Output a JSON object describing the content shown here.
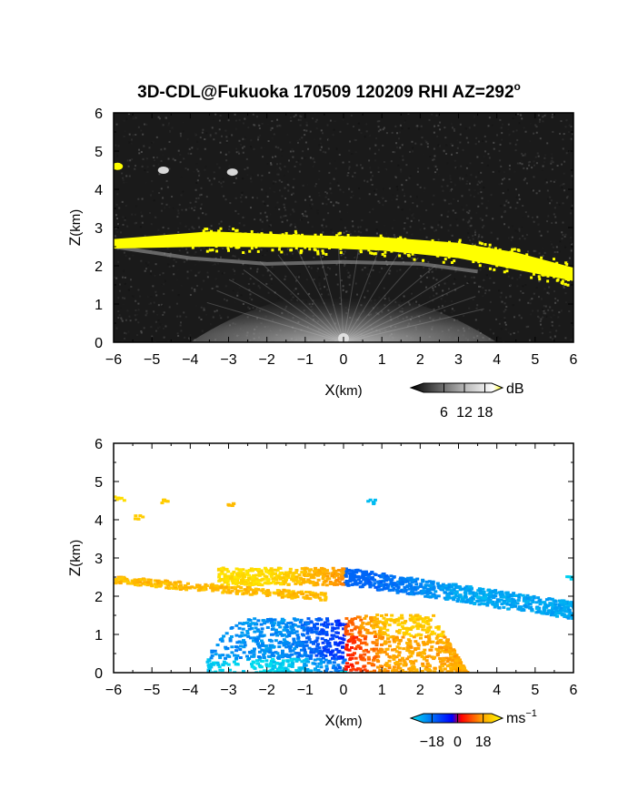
{
  "chart_data": [
    {
      "type": "heatmap",
      "panel": "top",
      "title_main": "3D-CDL@Fukuoka 170509 120209 RHI AZ=292",
      "title_sup": "o",
      "xlabel_main": "X",
      "xlabel_unit": "(km)",
      "ylabel_main": "Z",
      "ylabel_unit": "(km)",
      "xlim": [
        -6,
        6
      ],
      "ylim": [
        0,
        6
      ],
      "x_ticks": [
        -6,
        -5,
        -4,
        -3,
        -2,
        -1,
        0,
        1,
        2,
        3,
        4,
        5,
        6
      ],
      "y_ticks": [
        0,
        1,
        2,
        3,
        4,
        5,
        6
      ],
      "colorbar": {
        "unit": "dB",
        "unit_sup": "",
        "ticks": [
          "6",
          "12",
          "18"
        ],
        "range": [
          0,
          20
        ],
        "tick_values": [
          6,
          12,
          18
        ],
        "colors": [
          "#000000",
          "#ffffff",
          "#ffff00"
        ]
      },
      "features": [
        {
          "label": "cloud layer",
          "x": [
            -6.0,
            -3.5,
            -1.0,
            1.0,
            3.0,
            4.5,
            6.0
          ],
          "z_base": [
            2.45,
            2.5,
            2.48,
            2.4,
            2.2,
            1.9,
            1.6
          ],
          "z_top": [
            2.7,
            2.9,
            2.8,
            2.75,
            2.6,
            2.35,
            1.95
          ]
        },
        {
          "label": "elevated echoes",
          "x": [
            -5.9,
            -4.7,
            -2.9
          ],
          "z": [
            4.6,
            4.5,
            4.45
          ]
        }
      ]
    },
    {
      "type": "heatmap",
      "panel": "bottom",
      "xlabel_main": "X",
      "xlabel_unit": "(km)",
      "ylabel_main": "Z",
      "ylabel_unit": "(km)",
      "xlim": [
        -6,
        6
      ],
      "ylim": [
        0,
        6
      ],
      "x_ticks": [
        -6,
        -5,
        -4,
        -3,
        -2,
        -1,
        0,
        1,
        2,
        3,
        4,
        5,
        6
      ],
      "y_ticks": [
        0,
        1,
        2,
        3,
        4,
        5,
        6
      ],
      "colorbar": {
        "unit": "ms",
        "unit_sup": "−1",
        "ticks": [
          "−18",
          "0",
          "18"
        ],
        "range": [
          -24,
          24
        ],
        "tick_values": [
          -18,
          0,
          18
        ],
        "colors": [
          "#00e5ee",
          "#0000ff",
          "#ff0000",
          "#ffa500",
          "#ffff00"
        ]
      },
      "features": [
        {
          "label": "approaching (negative) velocities",
          "x_range": [
            -3.5,
            0
          ],
          "z_range": [
            0,
            1.5
          ],
          "v_approx": -14
        },
        {
          "label": "receding (positive) velocities",
          "x_range": [
            0,
            3
          ],
          "z_range": [
            0,
            1.6
          ],
          "v_approx": 14
        },
        {
          "label": "cloud layer west",
          "x_range": [
            -6,
            0
          ],
          "z_range": [
            2.3,
            2.9
          ],
          "v_approx": 16
        },
        {
          "label": "cloud layer east",
          "x_range": [
            0,
            6
          ],
          "z_range": [
            1.6,
            2.8
          ],
          "v_approx": -16
        }
      ]
    }
  ]
}
